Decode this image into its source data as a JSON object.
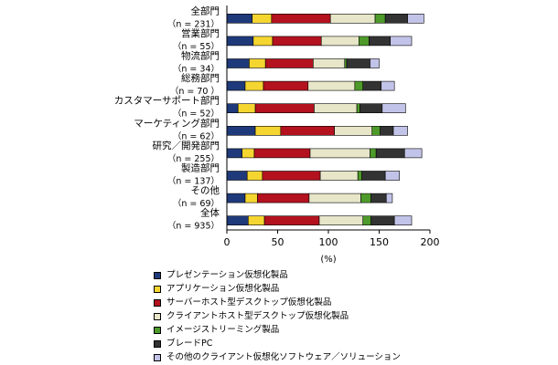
{
  "chart_data": {
    "type": "bar",
    "stacked": true,
    "orientation": "horizontal",
    "categories": [
      {
        "name": "全部門",
        "n": "（n = 231）"
      },
      {
        "name": "営業部門",
        "n": "（n = 55）"
      },
      {
        "name": "物流部門",
        "n": "（n = 34）"
      },
      {
        "name": "総務部門",
        "n": "（n = 70 ）"
      },
      {
        "name": "カスタマーサポート部門",
        "n": "（n = 52）"
      },
      {
        "name": "マーケティング部門",
        "n": "（n = 62）"
      },
      {
        "name": "研究／開発部門",
        "n": "（n = 255）"
      },
      {
        "name": "製造部門",
        "n": "（n = 137）"
      },
      {
        "name": "その他",
        "n": "（n = 69）"
      },
      {
        "name": "全体",
        "n": "（n = 935）"
      }
    ],
    "series": [
      {
        "name": "プレゼンテーション仮想化製品",
        "color": "#1f3a7a",
        "values": [
          25,
          26,
          22,
          18,
          11,
          28,
          15,
          20,
          18,
          21
        ]
      },
      {
        "name": "アプリケーション仮想化製品",
        "color": "#f5d630",
        "values": [
          19,
          19,
          16,
          18,
          17,
          25,
          12,
          15,
          12,
          16
        ]
      },
      {
        "name": "サーバーホスト型デスクトップ仮想化製品",
        "color": "#b3121e",
        "values": [
          58,
          48,
          47,
          44,
          58,
          53,
          55,
          57,
          51,
          54
        ]
      },
      {
        "name": "クライアントホスト型デスクトップ仮想化製品",
        "color": "#e7e6c9",
        "values": [
          44,
          37,
          31,
          46,
          42,
          37,
          59,
          37,
          51,
          43
        ]
      },
      {
        "name": "イメージストリーミング製品",
        "color": "#4e9a2a",
        "values": [
          10,
          10,
          2,
          8,
          3,
          8,
          6,
          4,
          10,
          8
        ]
      },
      {
        "name": "ブレードPC",
        "color": "#333333",
        "values": [
          22,
          21,
          23,
          18,
          22,
          13,
          28,
          23,
          15,
          23
        ]
      },
      {
        "name": "その他のクライアント仮想化ソフトウェア／ソリューション",
        "color": "#c2c3e8",
        "values": [
          16,
          21,
          9,
          13,
          23,
          14,
          17,
          14,
          6,
          17
        ]
      }
    ],
    "xlim": [
      0,
      200
    ],
    "xticks": [
      "0",
      "50",
      "100",
      "150",
      "200"
    ],
    "xlabel": "(%)",
    "legend_position": "bottom"
  }
}
